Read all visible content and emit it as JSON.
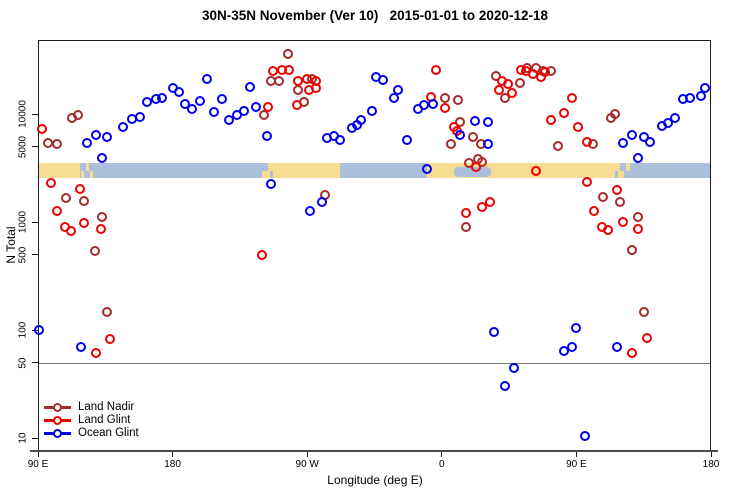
{
  "title": "30N-35N November (Ver 10)   2015-01-01 to 2020-12-18",
  "chart_data": {
    "type": "scatter",
    "title": "30N-35N November (Ver 10)   2015-01-01 to 2020-12-18",
    "xlabel": "Longitude (deg E)",
    "ylabel": "N Total",
    "x_axis": {
      "description": "Longitude wrapping eastward from 90E through 180, 90W, 0, 90E to 180",
      "ticks_deg": [
        90,
        180,
        270,
        360,
        450,
        540
      ],
      "tick_labels": [
        "90 E",
        "180",
        "90 W",
        "0",
        "90 E",
        "180"
      ],
      "range_deg": [
        90,
        540
      ]
    },
    "y_axis": {
      "scale": "log10",
      "ticks": [
        10000,
        5000,
        1000,
        500,
        100,
        50,
        10
      ],
      "tick_labels": [
        "10000",
        "5000",
        "1000",
        "500",
        "100",
        "50",
        "10"
      ],
      "range": [
        7.5,
        48000
      ]
    },
    "reference_line": {
      "y_value": 50,
      "color": "#777777"
    },
    "map_band": {
      "description": "land/ocean strip drawn across plot at N between ~2500 and ~3600",
      "value_range": [
        2500,
        3600
      ],
      "land_color": "#F7DC92",
      "ocean_color": "#ACC0DB",
      "segments": [
        {
          "type": "land",
          "from": 90,
          "to": 118
        },
        {
          "type": "ocean",
          "from": 118,
          "to": 240
        },
        {
          "type": "land",
          "from": 240,
          "to": 292
        },
        {
          "type": "ocean",
          "from": 292,
          "to": 350
        },
        {
          "type": "land",
          "from": 350,
          "to": 479
        },
        {
          "type": "ocean",
          "from": 479,
          "to": 540
        }
      ],
      "ocean_patches": [
        {
          "from": 368,
          "to": 393
        }
      ],
      "speckles": [
        {
          "type": "land",
          "from": 119,
          "to": 121,
          "part": "bottom"
        },
        {
          "type": "land",
          "from": 122,
          "to": 124,
          "part": "top"
        },
        {
          "type": "land",
          "from": 125,
          "to": 127,
          "part": "bottom"
        },
        {
          "type": "ocean",
          "from": 240,
          "to": 244,
          "part": "top"
        },
        {
          "type": "ocean",
          "from": 245,
          "to": 247,
          "part": "bottom"
        },
        {
          "type": "ocean",
          "from": 348,
          "to": 350,
          "part": "top"
        },
        {
          "type": "ocean",
          "from": 476,
          "to": 478,
          "part": "bottom"
        },
        {
          "type": "land",
          "from": 479,
          "to": 482,
          "part": "bottom"
        },
        {
          "type": "land",
          "from": 483,
          "to": 486,
          "part": "top"
        }
      ]
    },
    "series": [
      {
        "name": "Land Nadir",
        "color": "#A52A2A",
        "points": [
          [
            97,
            5390
          ],
          [
            103,
            5280
          ],
          [
            113,
            9180
          ],
          [
            117,
            9790
          ],
          [
            109,
            1670
          ],
          [
            121,
            1560
          ],
          [
            128,
            539
          ],
          [
            133,
            1110
          ],
          [
            136,
            147
          ],
          [
            241,
            9790
          ],
          [
            246,
            20200
          ],
          [
            251,
            20200
          ],
          [
            257,
            35900
          ],
          [
            264,
            16700
          ],
          [
            268,
            12900
          ],
          [
            273,
            21100
          ],
          [
            282,
            1780
          ],
          [
            362,
            14100
          ],
          [
            366,
            5280
          ],
          [
            371,
            13500
          ],
          [
            372,
            8430
          ],
          [
            376,
            899
          ],
          [
            378,
            3520
          ],
          [
            381,
            6120
          ],
          [
            384,
            3830
          ],
          [
            386,
            5280
          ],
          [
            387,
            3590
          ],
          [
            396,
            22500
          ],
          [
            402,
            14100
          ],
          [
            412,
            19400
          ],
          [
            417,
            26700
          ],
          [
            423,
            26700
          ],
          [
            428,
            25000
          ],
          [
            433,
            25000
          ],
          [
            438,
            5050
          ],
          [
            461,
            5280
          ],
          [
            468,
            1700
          ],
          [
            473,
            9180
          ],
          [
            476,
            10000
          ],
          [
            479,
            1530
          ],
          [
            487,
            551
          ],
          [
            491,
            1110
          ],
          [
            495,
            147
          ]
        ]
      },
      {
        "name": "Land Glint",
        "color": "#EE0000",
        "points": [
          [
            93,
            7260
          ],
          [
            99,
            2300
          ],
          [
            103,
            1260
          ],
          [
            108,
            899
          ],
          [
            112,
            825
          ],
          [
            118,
            2020
          ],
          [
            121,
            979
          ],
          [
            132,
            861
          ],
          [
            129,
            61.3
          ],
          [
            138,
            82.6
          ],
          [
            240,
            495
          ],
          [
            244,
            11600
          ],
          [
            247,
            25000
          ],
          [
            253,
            25600
          ],
          [
            258,
            25600
          ],
          [
            263,
            12100
          ],
          [
            264,
            20200
          ],
          [
            270,
            21100
          ],
          [
            271,
            16700
          ],
          [
            276,
            20200
          ],
          [
            276,
            17400
          ],
          [
            353,
            14400
          ],
          [
            356,
            25600
          ],
          [
            362,
            11400
          ],
          [
            368,
            7580
          ],
          [
            370,
            6960
          ],
          [
            383,
            3230
          ],
          [
            376,
            1210
          ],
          [
            387,
            1380
          ],
          [
            392,
            1530
          ],
          [
            398,
            16700
          ],
          [
            400,
            20200
          ],
          [
            404,
            19000
          ],
          [
            407,
            15600
          ],
          [
            413,
            25600
          ],
          [
            416,
            25000
          ],
          [
            421,
            23400
          ],
          [
            423,
            2970
          ],
          [
            426,
            22000
          ],
          [
            429,
            24500
          ],
          [
            433,
            8800
          ],
          [
            442,
            10200
          ],
          [
            447,
            14100
          ],
          [
            451,
            7580
          ],
          [
            457,
            5500
          ],
          [
            457,
            2340
          ],
          [
            462,
            1260
          ],
          [
            467,
            899
          ],
          [
            471,
            843
          ],
          [
            477,
            1980
          ],
          [
            481,
            1000
          ],
          [
            487,
            61.3
          ],
          [
            491,
            861
          ],
          [
            497,
            84.3
          ]
        ]
      },
      {
        "name": "Ocean Glint",
        "color": "#0000EE",
        "points": [
          [
            91,
            100
          ],
          [
            119,
            69.6
          ],
          [
            123,
            5390
          ],
          [
            129,
            6390
          ],
          [
            133,
            3920
          ],
          [
            136,
            6120
          ],
          [
            147,
            7580
          ],
          [
            153,
            8990
          ],
          [
            158,
            9380
          ],
          [
            163,
            12900
          ],
          [
            169,
            13800
          ],
          [
            173,
            14100
          ],
          [
            180,
            17400
          ],
          [
            184,
            16000
          ],
          [
            188,
            12400
          ],
          [
            193,
            11100
          ],
          [
            198,
            13200
          ],
          [
            203,
            21100
          ],
          [
            208,
            10400
          ],
          [
            213,
            13800
          ],
          [
            218,
            8800
          ],
          [
            223,
            9790
          ],
          [
            228,
            10700
          ],
          [
            232,
            17800
          ],
          [
            236,
            11600
          ],
          [
            243,
            6250
          ],
          [
            246,
            2250
          ],
          [
            272,
            1260
          ],
          [
            280,
            1530
          ],
          [
            283,
            5990
          ],
          [
            288,
            6250
          ],
          [
            292,
            5740
          ],
          [
            300,
            7420
          ],
          [
            303,
            7910
          ],
          [
            306,
            8800
          ],
          [
            313,
            10700
          ],
          [
            316,
            22000
          ],
          [
            321,
            20700
          ],
          [
            328,
            14100
          ],
          [
            331,
            16700
          ],
          [
            337,
            5740
          ],
          [
            344,
            11100
          ],
          [
            348,
            12100
          ],
          [
            350,
            3100
          ],
          [
            354,
            12400
          ],
          [
            372,
            6390
          ],
          [
            382,
            8610
          ],
          [
            391,
            8430
          ],
          [
            391,
            5280
          ],
          [
            395,
            95.8
          ],
          [
            402,
            30.3
          ],
          [
            408,
            44.5
          ],
          [
            442,
            64
          ],
          [
            447,
            69.6
          ],
          [
            450,
            104
          ],
          [
            456,
            10.4
          ],
          [
            477,
            69.6
          ],
          [
            481,
            5390
          ],
          [
            487,
            6390
          ],
          [
            491,
            3920
          ],
          [
            495,
            6120
          ],
          [
            499,
            5500
          ],
          [
            507,
            7740
          ],
          [
            511,
            8260
          ],
          [
            516,
            9180
          ],
          [
            521,
            13800
          ],
          [
            526,
            14100
          ],
          [
            533,
            14700
          ],
          [
            536,
            17400
          ]
        ]
      }
    ],
    "legend_position": "bottom-left"
  },
  "legend": {
    "items": [
      {
        "label": "Land Nadir",
        "color": "#A52A2A"
      },
      {
        "label": "Land Glint",
        "color": "#EE0000"
      },
      {
        "label": "Ocean Glint",
        "color": "#0000EE"
      }
    ]
  }
}
